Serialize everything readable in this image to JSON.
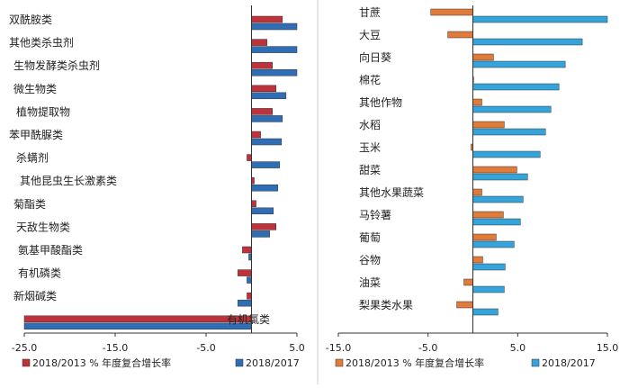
{
  "charts": [
    {
      "type": "bar",
      "orientation": "horizontal",
      "categories": [
        "双酰胺类",
        "其他类杀虫剂",
        "生物发酵类杀虫剂",
        "微生物类",
        "植物提取物",
        "苯甲酰脲类",
        "杀螨剂",
        "其他昆虫生长激素类",
        "菊酯类",
        "天敌生物类",
        "氨基甲酸酯类",
        "有机磷类",
        "新烟碱类",
        "有机氯类"
      ],
      "series": [
        {
          "name": "2018/2013 %  年度复合增长率",
          "color": "#c0323b",
          "values": [
            3.4,
            1.7,
            2.3,
            2.7,
            2.3,
            1.0,
            -0.5,
            0.3,
            0.5,
            2.7,
            -1.0,
            -1.5,
            -0.5,
            -25.0
          ]
        },
        {
          "name": "2018/2017",
          "color": "#2f6db5",
          "values": [
            5.0,
            5.0,
            5.0,
            3.8,
            3.4,
            3.3,
            3.1,
            2.9,
            2.4,
            2.0,
            -0.3,
            -0.5,
            -1.5,
            -25.0
          ]
        }
      ],
      "xlim": [
        -25,
        5
      ],
      "xticks": [
        "-25.0",
        "-15.0",
        "-5.0",
        "5.0"
      ],
      "xtick_values": [
        -25,
        -15,
        -5,
        5
      ]
    },
    {
      "type": "bar",
      "orientation": "horizontal",
      "categories": [
        "甘蔗",
        "大豆",
        "向日葵",
        "棉花",
        "其他作物",
        "水稻",
        "玉米",
        "甜菜",
        "其他水果蔬菜",
        "马铃薯",
        "葡萄",
        "谷物",
        "油菜",
        "梨果类水果"
      ],
      "series": [
        {
          "name": "2018/2013 %  年度复合增长率",
          "color": "#e07b39",
          "values": [
            -4.7,
            -2.8,
            2.3,
            0.0,
            1.0,
            3.5,
            -0.2,
            4.9,
            1.0,
            3.4,
            2.6,
            1.1,
            -1.0,
            -1.8
          ]
        },
        {
          "name": "2018/2017",
          "color": "#35a4da",
          "values": [
            15.0,
            12.2,
            10.3,
            9.6,
            8.7,
            8.1,
            7.5,
            6.1,
            5.6,
            5.3,
            4.6,
            3.6,
            3.5,
            2.8
          ]
        }
      ],
      "xlim": [
        -15,
        15
      ],
      "xticks": [
        "-15.0",
        "-5.0",
        "5.0",
        "15.0"
      ],
      "xtick_values": [
        -15,
        -5,
        5,
        15
      ]
    }
  ]
}
